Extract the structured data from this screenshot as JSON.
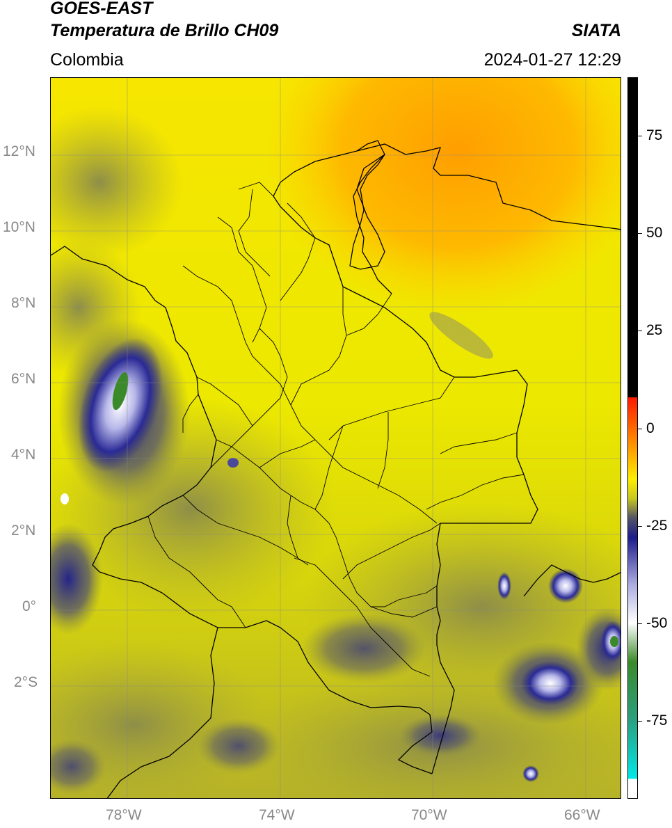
{
  "header": {
    "satellite": "GOES-EAST",
    "product": "Temperatura de Brillo CH09",
    "region": "Colombia",
    "brand": "SIATA",
    "datetime": "2024-01-27 12:29"
  },
  "axes": {
    "lat_labels": [
      "12°N",
      "10°N",
      "8°N",
      "6°N",
      "4°N",
      "2°N",
      "0°",
      "2°S"
    ],
    "lon_labels": [
      "78°W",
      "74°W",
      "70°W",
      "66°W"
    ]
  },
  "colorbar": {
    "ticks": [
      "75",
      "50",
      "25",
      "0",
      "-25",
      "-50",
      "-75"
    ],
    "tick_values": [
      75,
      50,
      25,
      0,
      -25,
      -50,
      -75
    ],
    "range": [
      -95,
      90
    ],
    "stops": [
      {
        "v": 90,
        "c": "#000000"
      },
      {
        "v": 8,
        "c": "#000000"
      },
      {
        "v": 7.9,
        "c": "#ff1a00"
      },
      {
        "v": -5,
        "c": "#ff9a00"
      },
      {
        "v": -13,
        "c": "#ffee00"
      },
      {
        "v": -18,
        "c": "#c8c81e"
      },
      {
        "v": -23,
        "c": "#555566"
      },
      {
        "v": -28,
        "c": "#1c1c8c"
      },
      {
        "v": -40,
        "c": "#aaaae0"
      },
      {
        "v": -50,
        "c": "#ffffff"
      },
      {
        "v": -60,
        "c": "#3a8a2a"
      },
      {
        "v": -75,
        "c": "#2aa080"
      },
      {
        "v": -90,
        "c": "#00e8e8"
      },
      {
        "v": -90.1,
        "c": "#ffffff"
      },
      {
        "v": -95,
        "c": "#ffffff"
      }
    ]
  },
  "colors": {
    "warm_orange": "#ffa500",
    "yellow": "#f2ee00",
    "olive": "#b8b820",
    "deep_cloud": "#1c1c8c",
    "cold_core": "#ffffff",
    "coldest": "#3a8a2a"
  }
}
